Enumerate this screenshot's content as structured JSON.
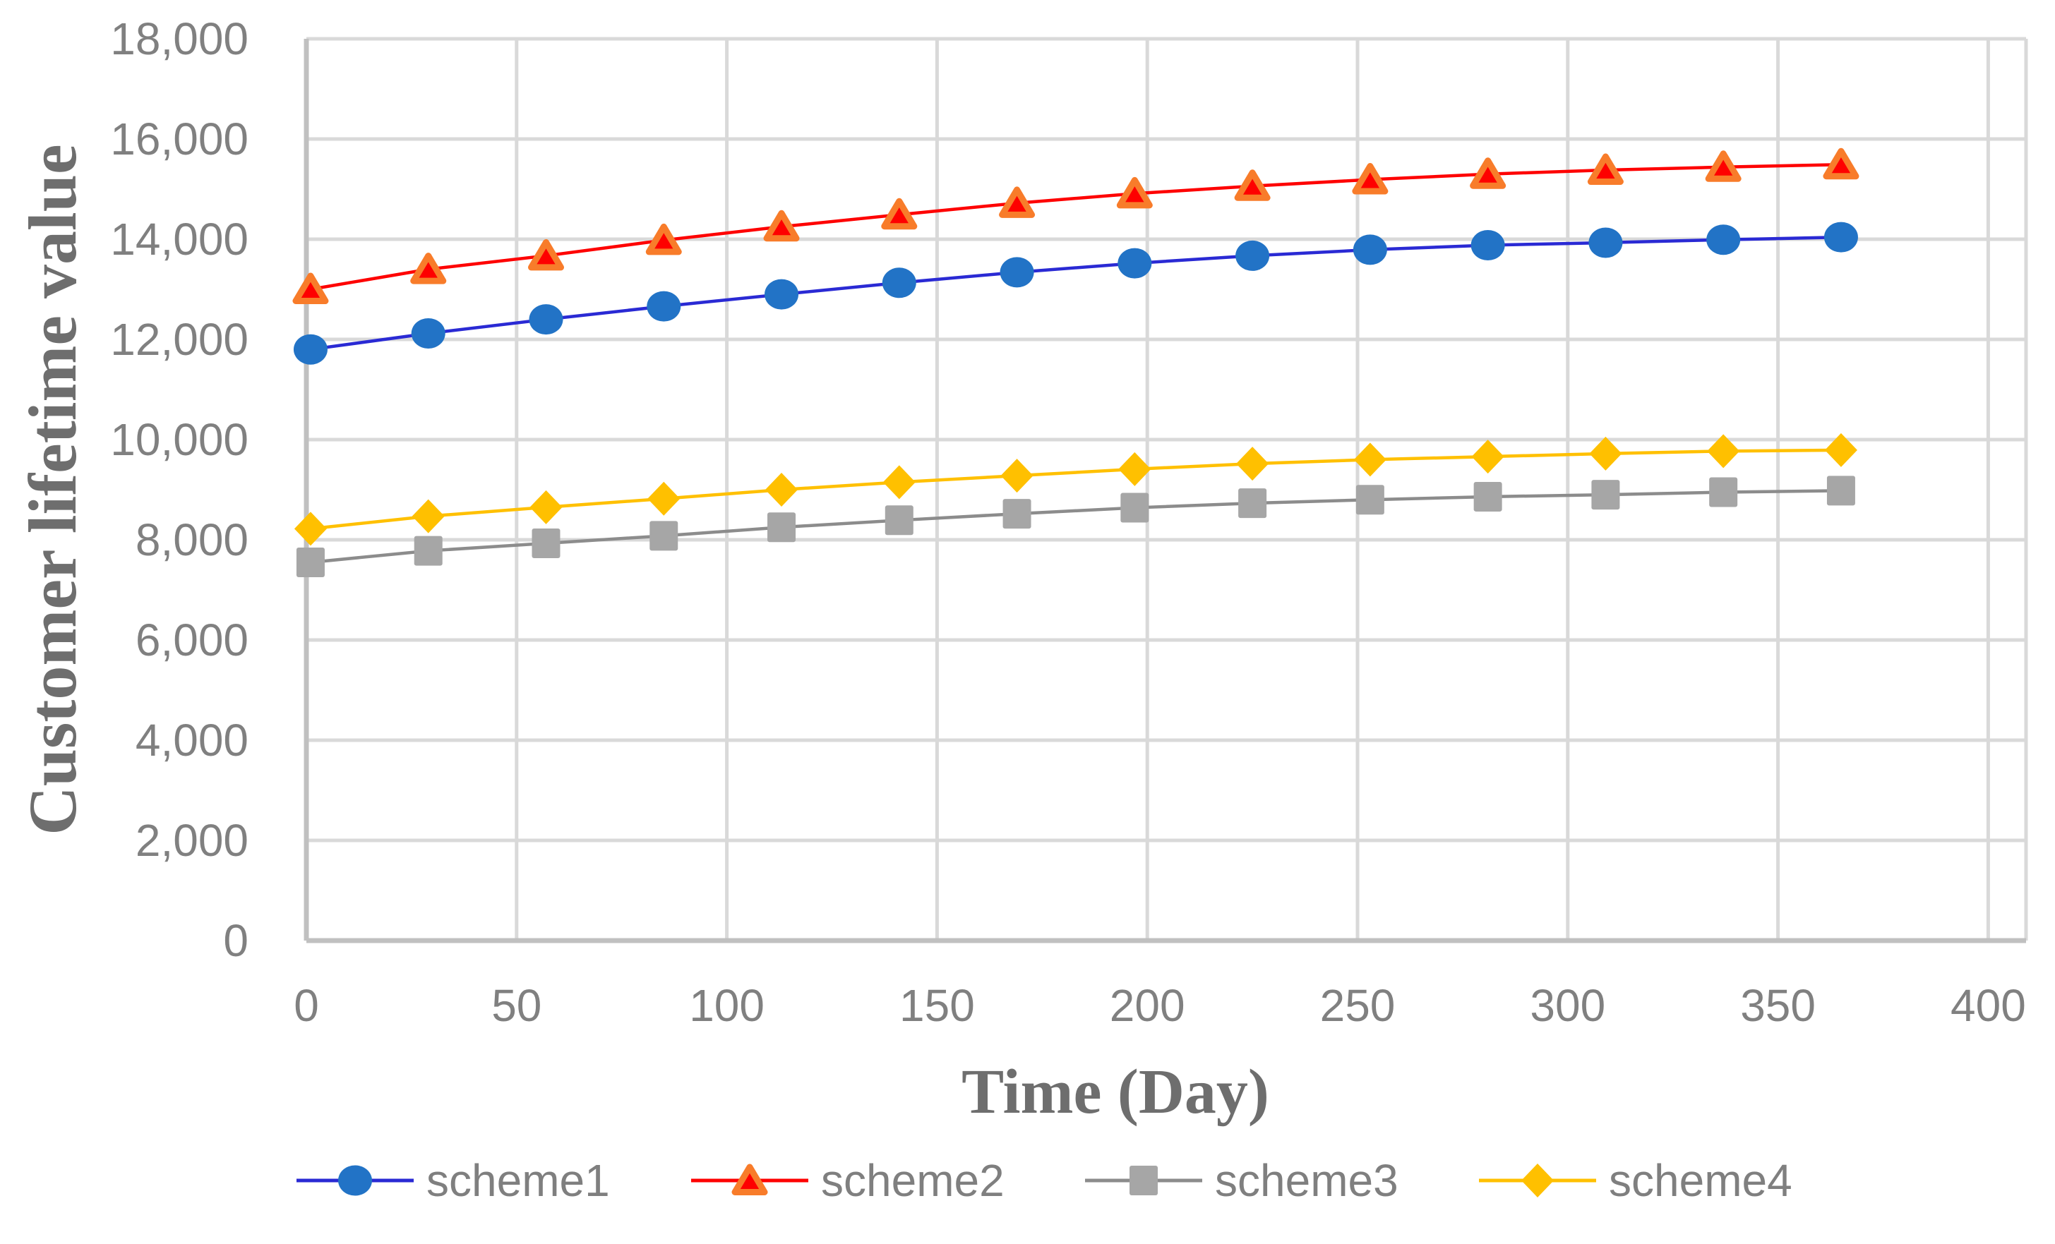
{
  "chart_data": {
    "type": "line",
    "title": "",
    "xlabel": "Time (Day)",
    "ylabel": "Customer lifetime value",
    "x": [
      1,
      29,
      57,
      85,
      113,
      141,
      169,
      197,
      225,
      253,
      281,
      309,
      337,
      365
    ],
    "series": [
      {
        "name": "scheme1",
        "marker": "circle",
        "line_color": "#2A2AD4",
        "marker_color": "#2273C6",
        "marker_stroke": "none",
        "values": [
          11800,
          12120,
          12400,
          12660,
          12900,
          13130,
          13340,
          13520,
          13670,
          13790,
          13880,
          13930,
          13990,
          14040
        ]
      },
      {
        "name": "scheme2",
        "marker": "triangle",
        "line_color": "#FE0000",
        "marker_color": "#FE0000",
        "marker_stroke": "#F87C2A",
        "values": [
          13000,
          13400,
          13670,
          13980,
          14250,
          14490,
          14720,
          14910,
          15060,
          15190,
          15300,
          15380,
          15440,
          15490
        ]
      },
      {
        "name": "scheme3",
        "marker": "square",
        "line_color": "#8C8C8C",
        "marker_color": "#A6A6A6",
        "marker_stroke": "none",
        "values": [
          7550,
          7780,
          7930,
          8080,
          8250,
          8390,
          8520,
          8640,
          8730,
          8800,
          8860,
          8900,
          8950,
          8980
        ]
      },
      {
        "name": "scheme4",
        "marker": "diamond",
        "line_color": "#FFC000",
        "marker_color": "#FFC000",
        "marker_stroke": "none",
        "values": [
          8220,
          8470,
          8650,
          8820,
          9000,
          9150,
          9280,
          9410,
          9520,
          9600,
          9660,
          9720,
          9770,
          9790
        ]
      }
    ],
    "x_ticks": [
      0,
      50,
      100,
      150,
      200,
      250,
      300,
      350,
      400
    ],
    "y_ticks": [
      0,
      2000,
      4000,
      6000,
      8000,
      10000,
      12000,
      14000,
      16000,
      18000
    ],
    "y_tick_labels": [
      "0",
      "2,000",
      "4,000",
      "6,000",
      "8,000",
      "10,000",
      "12,000",
      "14,000",
      "16,000",
      "18,000"
    ],
    "xlim": [
      0,
      409
    ],
    "ylim": [
      0,
      18000
    ],
    "grid": true,
    "legend_position": "bottom",
    "colors": {
      "gridline": "#D9D9D9",
      "axis_line": "#C0C0C0",
      "tick_text": "#808080",
      "axis_title_text": "#6E6E6E",
      "legend_text": "#7F7F7F",
      "background": "#FFFFFF"
    }
  },
  "legend": {
    "items": [
      {
        "label": "scheme1"
      },
      {
        "label": "scheme2"
      },
      {
        "label": "scheme3"
      },
      {
        "label": "scheme4"
      }
    ]
  }
}
